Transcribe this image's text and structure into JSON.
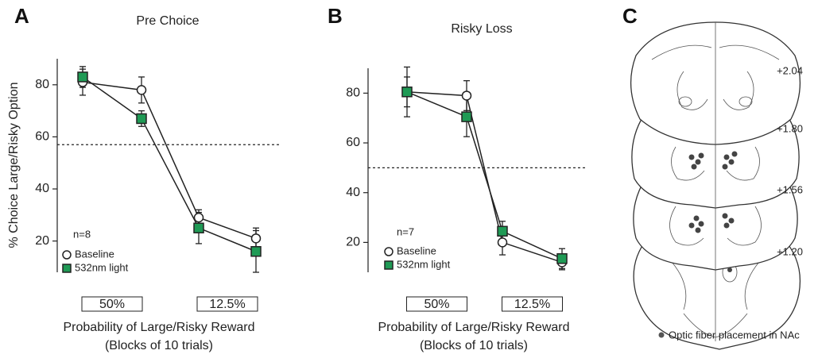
{
  "chart_data": [
    {
      "type": "line",
      "panel": "A",
      "title": "Pre Choice",
      "ylabel": "% Choice Large/Risky Option",
      "xlabel": [
        "Probability of Large/Risky Reward",
        "(Blocks of 10 trials)"
      ],
      "categories": [
        null,
        null,
        null,
        null
      ],
      "x_groups": [
        "50%",
        "12.5%"
      ],
      "annotation": "n=8",
      "hline": 57,
      "ylim": [
        8,
        90
      ],
      "yticks": [
        20,
        40,
        60,
        80
      ],
      "series": [
        {
          "name": "Baseline",
          "marker": "circle",
          "color": "#ffffff",
          "values": [
            81,
            78,
            29,
            21
          ],
          "errors": [
            5,
            5,
            3,
            4
          ]
        },
        {
          "name": "532nm light",
          "marker": "square",
          "color": "#1f9a55",
          "values": [
            83,
            67,
            25,
            16
          ],
          "errors": [
            4,
            3,
            6,
            8
          ]
        }
      ]
    },
    {
      "type": "line",
      "panel": "B",
      "title": "Risky Loss",
      "xlabel": [
        "Probability of Large/Risky Reward",
        "(Blocks of 10 trials)"
      ],
      "categories": [
        null,
        null,
        null,
        null
      ],
      "x_groups": [
        "50%",
        "12.5%"
      ],
      "annotation": "n=7",
      "hline": 50,
      "ylim": [
        8,
        90
      ],
      "yticks": [
        20,
        40,
        60,
        80
      ],
      "series": [
        {
          "name": "Baseline",
          "marker": "circle",
          "color": "#ffffff",
          "values": [
            80.5,
            79,
            20,
            12
          ],
          "errors": [
            6,
            6,
            5,
            3
          ]
        },
        {
          "name": "532nm light",
          "marker": "square",
          "color": "#1f9a55",
          "values": [
            80.5,
            70.5,
            24.5,
            13.5
          ],
          "errors": [
            10,
            8,
            4,
            4
          ]
        }
      ]
    }
  ],
  "panel_c": {
    "panel": "C",
    "levels": [
      "+2.04",
      "+1.80",
      "+1.56",
      "+1.20"
    ],
    "legend": "Optic fiber placement in NAc"
  }
}
